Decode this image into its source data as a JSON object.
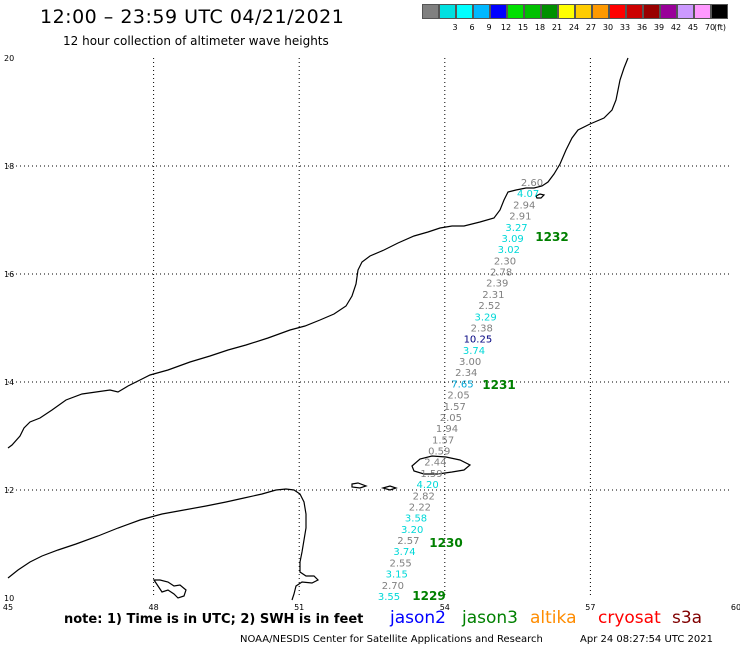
{
  "title": "12:00 – 23:59 UTC 04/21/2021",
  "subtitle": "12 hour collection of altimeter wave heights",
  "color_scale": {
    "unit": "(ft)",
    "items": [
      {
        "label": "",
        "color": "#808080"
      },
      {
        "label": "3",
        "color": "#00e0e0"
      },
      {
        "label": "6",
        "color": "#00ffff"
      },
      {
        "label": "9",
        "color": "#00b8ff"
      },
      {
        "label": "12",
        "color": "#0000ff"
      },
      {
        "label": "15",
        "color": "#00e000"
      },
      {
        "label": "18",
        "color": "#00c000"
      },
      {
        "label": "21",
        "color": "#009000"
      },
      {
        "label": "24",
        "color": "#ffff00"
      },
      {
        "label": "27",
        "color": "#ffcc00"
      },
      {
        "label": "30",
        "color": "#ff9900"
      },
      {
        "label": "33",
        "color": "#ff0000"
      },
      {
        "label": "36",
        "color": "#cc0000"
      },
      {
        "label": "39",
        "color": "#990000"
      },
      {
        "label": "42",
        "color": "#990099"
      },
      {
        "label": "45",
        "color": "#cc99ff"
      },
      {
        "label": "70",
        "color": "#ff99ff"
      },
      {
        "label": "",
        "color": "#000000"
      }
    ]
  },
  "map": {
    "lon_ticks": [
      "45",
      "48",
      "51",
      "54",
      "57",
      "60"
    ],
    "lat_ticks": [
      "20",
      "18",
      "16",
      "14",
      "12",
      "10"
    ],
    "track_times": [
      "1232",
      "1231",
      "1230",
      "1229"
    ],
    "track_time_color": "#008000",
    "wave_heights": [
      {
        "v": "2.60",
        "c": "#808080"
      },
      {
        "v": "4.07",
        "c": "#00d8d8"
      },
      {
        "v": "2.94",
        "c": "#808080"
      },
      {
        "v": "2.91",
        "c": "#808080"
      },
      {
        "v": "3.27",
        "c": "#00d8d8"
      },
      {
        "v": "3.09",
        "c": "#00d8d8"
      },
      {
        "v": "3.02",
        "c": "#00d8d8"
      },
      {
        "v": "2.30",
        "c": "#808080"
      },
      {
        "v": "2.78",
        "c": "#808080"
      },
      {
        "v": "2.39",
        "c": "#808080"
      },
      {
        "v": "2.31",
        "c": "#808080"
      },
      {
        "v": "2.52",
        "c": "#808080"
      },
      {
        "v": "3.29",
        "c": "#00d8d8"
      },
      {
        "v": "2.38",
        "c": "#808080"
      },
      {
        "v": "10.25",
        "c": "#000080"
      },
      {
        "v": "3.74",
        "c": "#00d8d8"
      },
      {
        "v": "3.00",
        "c": "#808080"
      },
      {
        "v": "2.34",
        "c": "#808080"
      },
      {
        "v": "7.65",
        "c": "#00a8d8"
      },
      {
        "v": "2.05",
        "c": "#808080"
      },
      {
        "v": "1.57",
        "c": "#808080"
      },
      {
        "v": "2.05",
        "c": "#808080"
      },
      {
        "v": "1.94",
        "c": "#808080"
      },
      {
        "v": "1.57",
        "c": "#808080"
      },
      {
        "v": "0.59",
        "c": "#808080"
      },
      {
        "v": "2.44",
        "c": "#808080"
      },
      {
        "v": "1.59",
        "c": "#808080"
      },
      {
        "v": "4.20",
        "c": "#00d8d8"
      },
      {
        "v": "2.82",
        "c": "#808080"
      },
      {
        "v": "2.22",
        "c": "#808080"
      },
      {
        "v": "3.58",
        "c": "#00d8d8"
      },
      {
        "v": "3.20",
        "c": "#00d8d8"
      },
      {
        "v": "2.57",
        "c": "#808080"
      },
      {
        "v": "3.74",
        "c": "#00d8d8"
      },
      {
        "v": "2.55",
        "c": "#808080"
      },
      {
        "v": "3.15",
        "c": "#00d8d8"
      },
      {
        "v": "2.70",
        "c": "#808080"
      },
      {
        "v": "3.55",
        "c": "#00d8d8"
      }
    ]
  },
  "footer": {
    "note": "note: 1) Time is in UTC; 2) SWH is in feet",
    "credit": "NOAA/NESDIS Center for Satellite Applications and Research",
    "date": "Apr 24 08:27:54 UTC 2021",
    "legend": [
      {
        "label": "jason2",
        "color": "#0000ff"
      },
      {
        "label": "jason3",
        "color": "#008000"
      },
      {
        "label": "altika",
        "color": "#ff8c00"
      },
      {
        "label": "cryosat",
        "color": "#ff0000"
      },
      {
        "label": "s3a",
        "color": "#800000"
      }
    ]
  }
}
